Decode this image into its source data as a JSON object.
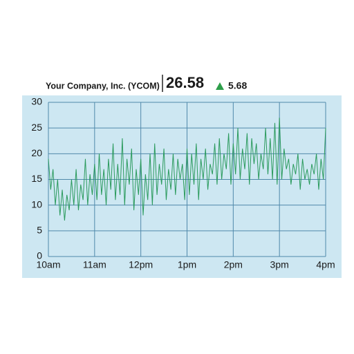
{
  "chart_data": {
    "type": "line",
    "title": "Your Company, Inc. (YCOM)",
    "last_price": 26.58,
    "change": 5.68,
    "change_color": "#2e9e4a",
    "x": [
      10,
      10.05,
      10.1,
      10.15,
      10.2,
      10.25,
      10.3,
      10.35,
      10.4,
      10.45,
      10.5,
      10.55,
      10.6,
      10.65,
      10.7,
      10.75,
      10.8,
      10.85,
      10.9,
      10.95,
      11,
      11.05,
      11.1,
      11.15,
      11.2,
      11.25,
      11.3,
      11.35,
      11.4,
      11.45,
      11.5,
      11.55,
      11.6,
      11.65,
      11.7,
      11.75,
      11.8,
      11.85,
      11.9,
      11.95,
      12,
      12.05,
      12.1,
      12.15,
      12.2,
      12.25,
      12.3,
      12.35,
      12.4,
      12.45,
      12.5,
      12.55,
      12.6,
      12.65,
      12.7,
      12.75,
      12.8,
      12.85,
      12.9,
      12.95,
      13,
      13.05,
      13.1,
      13.15,
      13.2,
      13.25,
      13.3,
      13.35,
      13.4,
      13.45,
      13.5,
      13.55,
      13.6,
      13.65,
      13.7,
      13.75,
      13.8,
      13.85,
      13.9,
      13.95,
      14,
      14.05,
      14.1,
      14.15,
      14.2,
      14.25,
      14.3,
      14.35,
      14.4,
      14.45,
      14.5,
      14.55,
      14.6,
      14.65,
      14.7,
      14.75,
      14.8,
      14.85,
      14.9,
      14.95,
      15,
      15.05,
      15.1,
      15.15,
      15.2,
      15.25,
      15.3,
      15.35,
      15.4,
      15.45,
      15.5,
      15.55,
      15.6,
      15.65,
      15.7,
      15.75,
      15.8,
      15.85,
      15.9,
      15.95,
      16
    ],
    "series": [
      {
        "color": "#2a9a5c",
        "values": [
          19,
          13,
          17,
          10,
          15,
          8,
          13,
          7,
          12,
          9,
          15,
          10,
          17,
          9,
          14,
          11,
          19,
          10,
          16,
          12,
          18,
          11,
          20,
          12,
          17,
          10,
          19,
          13,
          22,
          11,
          18,
          12,
          23,
          10,
          19,
          14,
          21,
          9,
          17,
          12,
          19,
          8,
          16,
          11,
          20,
          10,
          22,
          12,
          18,
          14,
          21,
          11,
          17,
          13,
          20,
          12,
          19,
          15,
          18,
          11,
          21,
          12,
          20,
          14,
          22,
          11,
          19,
          15,
          21,
          13,
          18,
          16,
          22,
          14,
          23,
          15,
          20,
          17,
          24,
          14,
          22,
          16,
          25,
          15,
          21,
          17,
          24,
          14,
          23,
          18,
          22,
          15,
          20,
          17,
          25,
          16,
          23,
          15,
          26,
          14,
          27,
          15,
          21,
          17,
          19,
          14,
          18,
          16,
          20,
          13,
          19,
          15,
          17,
          14,
          18,
          16,
          20,
          13,
          19,
          15,
          25
        ]
      }
    ],
    "xlim": [
      10,
      16
    ],
    "xticks": [
      {
        "value": 10,
        "label": "10am"
      },
      {
        "value": 11,
        "label": "11am"
      },
      {
        "value": 12,
        "label": "12pm"
      },
      {
        "value": 13,
        "label": "1pm"
      },
      {
        "value": 14,
        "label": "2pm"
      },
      {
        "value": 15,
        "label": "3pm"
      },
      {
        "value": 16,
        "label": "4pm"
      }
    ],
    "ylim": [
      0,
      30
    ],
    "yticks": [
      0,
      5,
      10,
      15,
      20,
      25,
      30
    ],
    "grid": true,
    "background": "#cde7f2",
    "grid_color": "#4f88aa"
  }
}
